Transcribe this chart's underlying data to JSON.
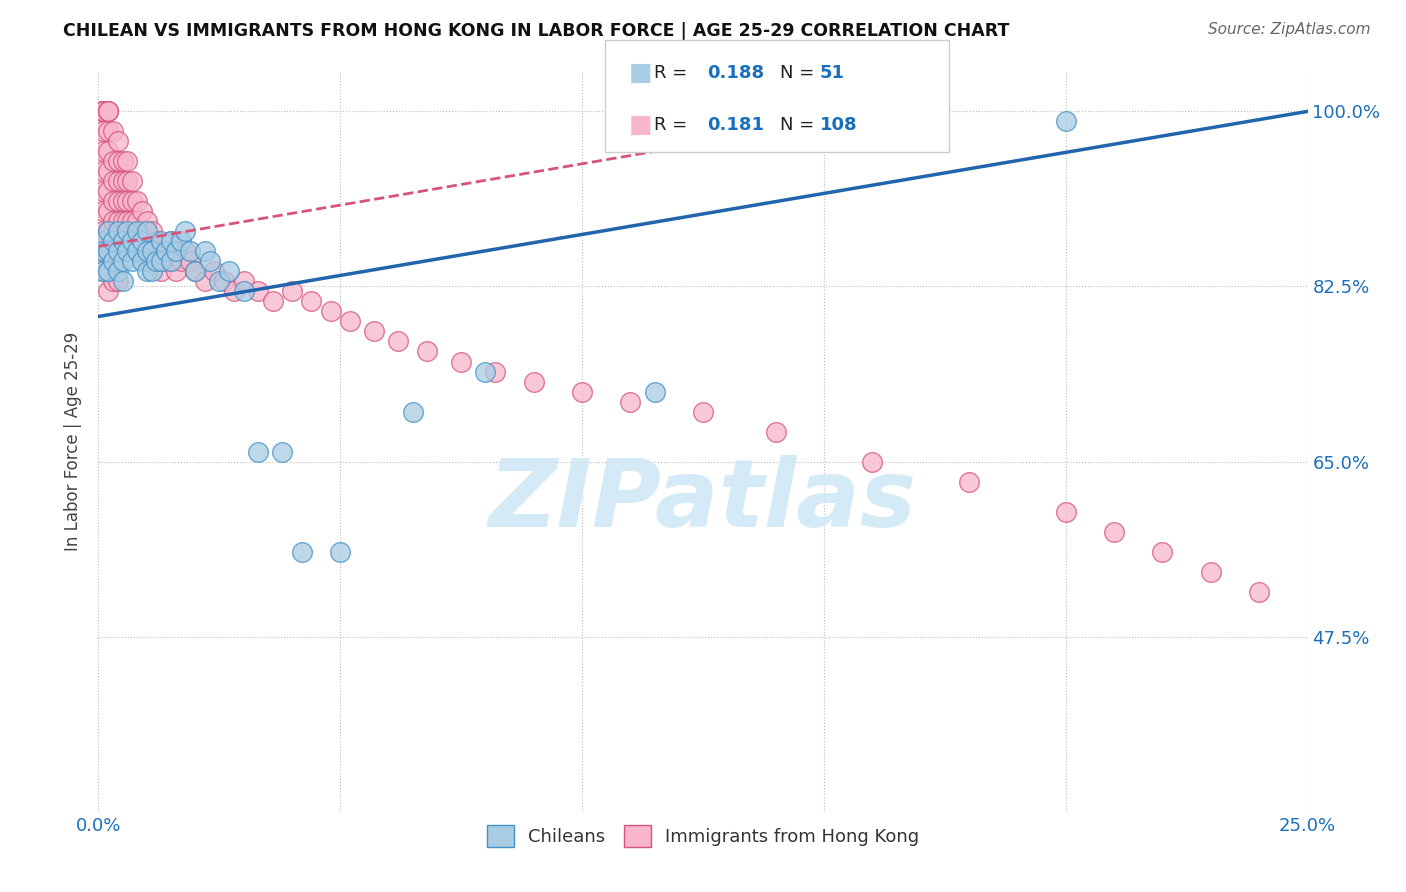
{
  "title": "CHILEAN VS IMMIGRANTS FROM HONG KONG IN LABOR FORCE | AGE 25-29 CORRELATION CHART",
  "source": "Source: ZipAtlas.com",
  "ylabel": "In Labor Force | Age 25-29",
  "ytick_values": [
    1.0,
    0.825,
    0.65,
    0.475
  ],
  "ytick_labels": [
    "100.0%",
    "82.5%",
    "65.0%",
    "47.5%"
  ],
  "xmin": 0.0,
  "xmax": 0.25,
  "ymin": 0.3,
  "ymax": 1.04,
  "chileans_R": "0.188",
  "chileans_N": "51",
  "hk_R": "0.181",
  "hk_N": "108",
  "blue_fill": "#a8cce4",
  "blue_edge": "#4292c6",
  "pink_fill": "#f7b6cc",
  "pink_edge": "#d6547a",
  "blue_line_color": "#2166ac",
  "pink_line_color": "#d6547a",
  "legend_color": "#1a6fba",
  "watermark_color": "#d0e8f5",
  "chileans_x": [
    0.001,
    0.001,
    0.001,
    0.002,
    0.002,
    0.002,
    0.003,
    0.003,
    0.004,
    0.004,
    0.004,
    0.005,
    0.005,
    0.005,
    0.006,
    0.006,
    0.007,
    0.007,
    0.008,
    0.008,
    0.009,
    0.009,
    0.01,
    0.01,
    0.01,
    0.011,
    0.011,
    0.012,
    0.013,
    0.013,
    0.014,
    0.015,
    0.015,
    0.016,
    0.017,
    0.018,
    0.019,
    0.02,
    0.022,
    0.023,
    0.025,
    0.027,
    0.03,
    0.033,
    0.038,
    0.042,
    0.05,
    0.065,
    0.08,
    0.115,
    0.2
  ],
  "chileans_y": [
    0.87,
    0.86,
    0.84,
    0.88,
    0.86,
    0.84,
    0.87,
    0.85,
    0.88,
    0.86,
    0.84,
    0.87,
    0.85,
    0.83,
    0.88,
    0.86,
    0.87,
    0.85,
    0.88,
    0.86,
    0.87,
    0.85,
    0.88,
    0.86,
    0.84,
    0.86,
    0.84,
    0.85,
    0.87,
    0.85,
    0.86,
    0.87,
    0.85,
    0.86,
    0.87,
    0.88,
    0.86,
    0.84,
    0.86,
    0.85,
    0.83,
    0.84,
    0.82,
    0.66,
    0.66,
    0.56,
    0.56,
    0.7,
    0.74,
    0.72,
    0.99
  ],
  "hk_x": [
    0.001,
    0.001,
    0.001,
    0.001,
    0.001,
    0.001,
    0.001,
    0.001,
    0.001,
    0.001,
    0.001,
    0.001,
    0.001,
    0.001,
    0.001,
    0.001,
    0.002,
    0.002,
    0.002,
    0.002,
    0.002,
    0.002,
    0.002,
    0.002,
    0.002,
    0.002,
    0.002,
    0.002,
    0.003,
    0.003,
    0.003,
    0.003,
    0.003,
    0.003,
    0.003,
    0.003,
    0.004,
    0.004,
    0.004,
    0.004,
    0.004,
    0.004,
    0.004,
    0.004,
    0.005,
    0.005,
    0.005,
    0.005,
    0.005,
    0.006,
    0.006,
    0.006,
    0.006,
    0.007,
    0.007,
    0.007,
    0.007,
    0.008,
    0.008,
    0.008,
    0.009,
    0.009,
    0.009,
    0.01,
    0.01,
    0.01,
    0.011,
    0.011,
    0.012,
    0.012,
    0.013,
    0.013,
    0.014,
    0.015,
    0.015,
    0.016,
    0.017,
    0.018,
    0.019,
    0.02,
    0.022,
    0.024,
    0.026,
    0.028,
    0.03,
    0.033,
    0.036,
    0.04,
    0.044,
    0.048,
    0.052,
    0.057,
    0.062,
    0.068,
    0.075,
    0.082,
    0.09,
    0.1,
    0.11,
    0.125,
    0.14,
    0.16,
    0.18,
    0.2,
    0.21,
    0.22,
    0.23,
    0.24
  ],
  "hk_y": [
    1.0,
    1.0,
    1.0,
    1.0,
    1.0,
    1.0,
    1.0,
    1.0,
    0.98,
    0.96,
    0.94,
    0.92,
    0.9,
    0.88,
    0.86,
    0.84,
    1.0,
    1.0,
    1.0,
    0.98,
    0.96,
    0.94,
    0.92,
    0.9,
    0.88,
    0.86,
    0.84,
    0.82,
    0.98,
    0.95,
    0.93,
    0.91,
    0.89,
    0.87,
    0.85,
    0.83,
    0.97,
    0.95,
    0.93,
    0.91,
    0.89,
    0.87,
    0.85,
    0.83,
    0.95,
    0.93,
    0.91,
    0.89,
    0.87,
    0.95,
    0.93,
    0.91,
    0.89,
    0.93,
    0.91,
    0.89,
    0.87,
    0.91,
    0.89,
    0.87,
    0.9,
    0.88,
    0.86,
    0.89,
    0.87,
    0.85,
    0.88,
    0.86,
    0.87,
    0.85,
    0.86,
    0.84,
    0.85,
    0.87,
    0.85,
    0.84,
    0.85,
    0.86,
    0.85,
    0.84,
    0.83,
    0.84,
    0.83,
    0.82,
    0.83,
    0.82,
    0.81,
    0.82,
    0.81,
    0.8,
    0.79,
    0.78,
    0.77,
    0.76,
    0.75,
    0.74,
    0.73,
    0.72,
    0.71,
    0.7,
    0.68,
    0.65,
    0.63,
    0.6,
    0.58,
    0.56,
    0.54,
    0.52
  ],
  "blue_trendline_x": [
    0.0,
    0.25
  ],
  "blue_trendline_y": [
    0.795,
    1.0
  ],
  "pink_trendline_x": [
    0.0,
    0.115
  ],
  "pink_trendline_y": [
    0.865,
    0.96
  ]
}
